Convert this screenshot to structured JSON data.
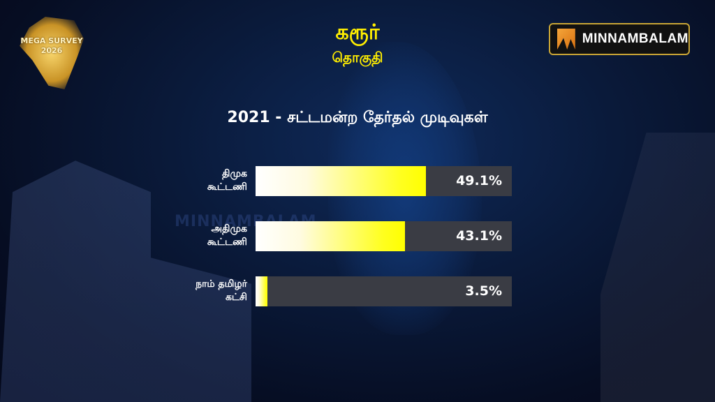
{
  "header": {
    "constituency": "கரூர்",
    "segment": "தொகுதி",
    "brand_logo_text": "MINNAMBALAM",
    "event_logo_line1": "MEGA SURVEY",
    "event_logo_line2": "2026",
    "watermark": "MINNAMBALAM"
  },
  "chart_data": {
    "type": "bar",
    "orientation": "horizontal",
    "title": "2021 - சட்டமன்ற தேர்தல் முடிவுகள்",
    "categories": [
      [
        "திமுக",
        "கூட்டணி"
      ],
      [
        "அதிமுக",
        "கூட்டணி"
      ],
      [
        "நாம் தமிழர்",
        "கட்சி"
      ]
    ],
    "values": [
      49.1,
      43.1,
      3.5
    ],
    "value_labels": [
      "49.1%",
      "43.1%",
      "3.5%"
    ],
    "unit": "%",
    "xlim": [
      0,
      74
    ],
    "grid": false,
    "colors": {
      "fill_start": "#ffffff",
      "fill_end": "#ffff00",
      "track": "#3a3c44",
      "title": "#ffffff",
      "header": "#ffee00"
    }
  }
}
